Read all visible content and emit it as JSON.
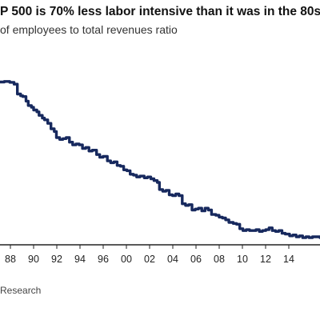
{
  "header": {
    "title": "P 500 is 70% less labor intensive than it was in the 80s",
    "subtitle": "of employees to total revenues ratio"
  },
  "footer": {
    "source": "Research"
  },
  "colors": {
    "line": "#17295e",
    "axis": "#222222",
    "tick_text": "#222222"
  },
  "chart_data": {
    "type": "line",
    "title": "P 500 is 70% less labor intensive than it was in the 80s",
    "subtitle": "of employees to total revenues ratio",
    "xlabel": "",
    "ylabel": "",
    "xlim": [
      1985.9,
      2015.4
    ],
    "ylim": [
      0,
      100
    ],
    "grid": false,
    "legend": "none",
    "x_tick_labels": [
      "88",
      "90",
      "92",
      "94",
      "96",
      "00",
      "02",
      "04",
      "06",
      "08",
      "10",
      "12",
      "14"
    ],
    "series": [
      {
        "x": [
          1985.9,
          1986.3,
          1986.8,
          1987.2,
          1987.5,
          1987.8,
          1988.0,
          1988.3,
          1988.5,
          1988.8,
          1989.0,
          1989.3,
          1989.5,
          1989.8,
          1990.0,
          1990.3,
          1990.6,
          1990.9,
          1991.1,
          1991.4,
          1991.7,
          1992.0,
          1992.3,
          1992.6,
          1992.9,
          1993.2,
          1993.5,
          1993.8,
          1994.1,
          1994.4,
          1994.8,
          1995.1,
          1995.4,
          1995.8,
          1996.1,
          1996.4,
          1996.7,
          1997.0,
          1997.3,
          1997.6,
          1997.9,
          1998.2,
          1998.5,
          1998.8,
          1999.2,
          1999.5,
          1999.8,
          2000.1,
          2000.4,
          2000.6,
          2000.9,
          2001.2,
          2001.5,
          2001.8,
          2002.1,
          2002.4,
          2002.7,
          2003.0,
          2003.3,
          2003.6,
          2003.9,
          2004.2,
          2004.5,
          2004.8,
          2005.1,
          2005.4,
          2005.8,
          2006.1,
          2006.4,
          2006.7,
          2007.0,
          2007.4,
          2007.7,
          2008.0,
          2008.3,
          2008.6,
          2008.9,
          2009.2,
          2009.5,
          2009.8,
          2010.1,
          2010.4,
          2010.7,
          2011.0,
          2011.3,
          2011.6,
          2011.9,
          2012.2,
          2012.6,
          2012.9,
          2013.2,
          2013.5,
          2013.8,
          2014.1,
          2014.4,
          2014.7,
          2015.0,
          2015.4
        ],
        "y": [
          96.0,
          96.3,
          95.8,
          94.7,
          88.9,
          87.9,
          87.4,
          84.7,
          82.1,
          81.1,
          79.5,
          78.4,
          76.3,
          74.7,
          73.7,
          71.6,
          68.4,
          66.8,
          63.2,
          62.1,
          62.6,
          63.2,
          60.5,
          58.9,
          59.5,
          58.9,
          56.8,
          57.4,
          55.3,
          55.8,
          53.2,
          51.6,
          52.1,
          49.5,
          48.4,
          48.9,
          46.8,
          46.3,
          44.2,
          43.7,
          41.6,
          41.1,
          40.0,
          40.5,
          39.5,
          40.0,
          38.9,
          37.9,
          36.8,
          32.6,
          31.6,
          32.1,
          29.5,
          29.0,
          30.0,
          29.0,
          24.2,
          23.2,
          23.7,
          20.5,
          21.1,
          21.6,
          20.0,
          21.6,
          20.5,
          17.9,
          17.4,
          16.3,
          15.8,
          14.7,
          13.2,
          12.6,
          12.1,
          9.5,
          8.4,
          8.9,
          8.4,
          8.4,
          8.9,
          7.9,
          8.4,
          8.9,
          10.0,
          8.4,
          7.9,
          8.4,
          6.8,
          6.3,
          5.3,
          5.8,
          4.7,
          5.3,
          4.2,
          4.7,
          4.2,
          4.7,
          4.7,
          4.2
        ]
      }
    ]
  }
}
